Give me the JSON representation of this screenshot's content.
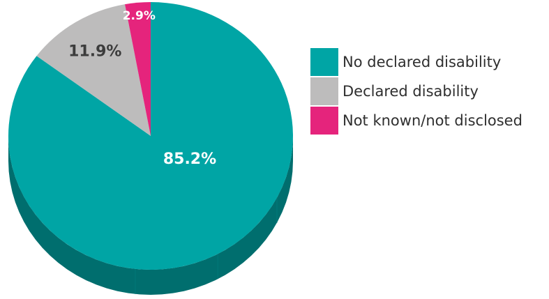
{
  "chart_data": {
    "type": "pie",
    "title": "",
    "slices": [
      {
        "name": "No declared disability",
        "value": 85.2,
        "label": "85.2%",
        "color": "#00a5a5",
        "side_color": "#006e6e",
        "label_color": "#ffffff"
      },
      {
        "name": "Declared disability",
        "value": 11.9,
        "label": "11.9%",
        "color": "#bdbcbc",
        "side_color": "#8a8a8a",
        "label_color": "#3c3c3c"
      },
      {
        "name": "Not known/not disclosed",
        "value": 2.9,
        "label": "2.9%",
        "color": "#e5247c",
        "side_color": "#a3185a",
        "label_color": "#ffffff"
      }
    ],
    "legend_position": "right",
    "three_d": true
  }
}
